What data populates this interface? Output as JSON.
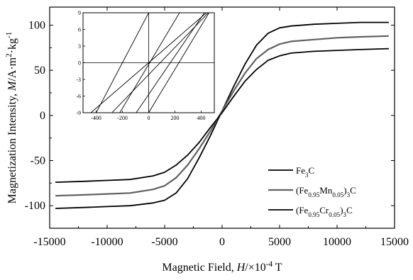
{
  "chart_data": {
    "type": "line",
    "xlabel_parts": [
      "Magnetic Field, ",
      "H",
      "/×10",
      "-4",
      " T"
    ],
    "ylabel_parts": [
      "Magnetization Intensity, ",
      "M",
      "/A·m",
      "2",
      "·kg",
      "-1"
    ],
    "xlim": [
      -15000,
      15000
    ],
    "ylim": [
      -125,
      120
    ],
    "xticks": [
      -15000,
      -10000,
      -5000,
      0,
      5000,
      10000,
      15000
    ],
    "yticks": [
      -100,
      -50,
      0,
      50,
      100
    ],
    "legend_position": "lower-right",
    "series": [
      {
        "legend": [
          "Fe",
          "3",
          "C"
        ],
        "color": "#000000",
        "x": [
          -14500,
          -12000,
          -10000,
          -8000,
          -6000,
          -5000,
          -4000,
          -3000,
          -2000,
          -1000,
          0,
          1000,
          2000,
          3000,
          4000,
          5000,
          6000,
          8000,
          10000,
          12000,
          14500
        ],
        "y": [
          -103,
          -102,
          -101,
          -100,
          -97,
          -94,
          -86,
          -70,
          -47,
          -22,
          5,
          32,
          57,
          78,
          91,
          97,
          99,
          101,
          102,
          103,
          103
        ]
      },
      {
        "legend": [
          "(Fe",
          "0.95",
          "Mn",
          "0.05",
          ")",
          "3",
          "C"
        ],
        "color": "#606060",
        "x": [
          -14500,
          -12000,
          -10000,
          -8000,
          -6000,
          -5000,
          -4000,
          -3000,
          -2000,
          -1000,
          0,
          1000,
          2000,
          3000,
          4000,
          5000,
          6000,
          8000,
          10000,
          12000,
          14500
        ],
        "y": [
          -89,
          -88,
          -87,
          -86,
          -82,
          -78,
          -69,
          -55,
          -37,
          -17,
          5,
          27,
          47,
          63,
          73,
          79,
          82,
          84,
          86,
          87,
          88
        ]
      },
      {
        "legend": [
          "(Fe",
          "0.95",
          "Cr",
          "0.05",
          ")",
          "3",
          "C"
        ],
        "color": "#000000",
        "x": [
          -14500,
          -12000,
          -10000,
          -8000,
          -6000,
          -5000,
          -4000,
          -3000,
          -2000,
          -1000,
          0,
          1000,
          2000,
          3000,
          4000,
          5000,
          6000,
          8000,
          10000,
          12000,
          14500
        ],
        "y": [
          -74,
          -73,
          -72,
          -71,
          -67,
          -63,
          -55,
          -44,
          -30,
          -13,
          3,
          21,
          38,
          51,
          61,
          66,
          69,
          71,
          72,
          73,
          74
        ]
      }
    ],
    "inset": {
      "xlim": [
        -500,
        500
      ],
      "ylim": [
        -9,
        9
      ],
      "xticks": [
        -400,
        -200,
        0,
        200,
        400
      ],
      "yticks": [
        -9,
        -6,
        -3,
        0,
        3,
        6,
        9
      ],
      "lines": [
        {
          "x": [
            -440,
            440
          ],
          "y": [
            -9,
            9
          ]
        },
        {
          "x": [
            -280,
            455
          ],
          "y": [
            -9,
            9
          ]
        },
        {
          "x": [
            -220,
            235
          ],
          "y": [
            -9,
            9
          ]
        },
        {
          "x": [
            -95,
            425
          ],
          "y": [
            -9,
            9
          ]
        },
        {
          "x": [
            -400,
            0
          ],
          "y": [
            -9,
            9
          ]
        },
        {
          "x": [
            0,
            460
          ],
          "y": [
            -9,
            9
          ]
        }
      ]
    }
  }
}
